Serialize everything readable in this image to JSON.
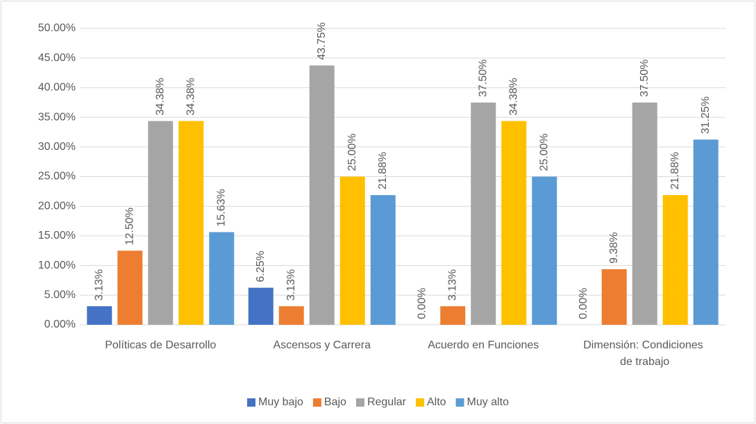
{
  "chart_data": {
    "type": "bar",
    "categories": [
      "Políticas de Desarrollo",
      "Ascensos y Carrera",
      "Acuerdo en Funciones",
      "Dimensión: Condiciones de trabajo"
    ],
    "series": [
      {
        "name": "Muy bajo",
        "color": "#4472c4",
        "values": [
          3.13,
          6.25,
          0,
          0
        ],
        "value_labels": [
          "3.13%",
          "6.25%",
          "0.00%",
          "0.00%"
        ]
      },
      {
        "name": "Bajo",
        "color": "#ed7d31",
        "values": [
          12.5,
          3.13,
          3.13,
          9.38
        ],
        "value_labels": [
          "12.50%",
          "3.13%",
          "3.13%",
          "9.38%"
        ]
      },
      {
        "name": "Regular",
        "color": "#a5a5a5",
        "values": [
          34.38,
          43.75,
          37.5,
          37.5
        ],
        "value_labels": [
          "34.38%",
          "43.75%",
          "37.50%",
          "37.50%"
        ]
      },
      {
        "name": "Alto",
        "color": "#ffc000",
        "values": [
          34.38,
          25,
          34.38,
          21.88
        ],
        "value_labels": [
          "34.38%",
          "25.00%",
          "34.38%",
          "21.88%"
        ]
      },
      {
        "name": "Muy alto",
        "color": "#5b9bd5",
        "values": [
          15.63,
          21.88,
          25,
          31.25
        ],
        "value_labels": [
          "15.63%",
          "21.88%",
          "25.00%",
          "31.25%"
        ]
      }
    ],
    "ylim": [
      0,
      50
    ],
    "yticks": [
      {
        "value": 0,
        "label": "0.00%"
      },
      {
        "value": 5,
        "label": "5.00%"
      },
      {
        "value": 10,
        "label": "10.00%"
      },
      {
        "value": 15,
        "label": "15.00%"
      },
      {
        "value": 20,
        "label": "20.00%"
      },
      {
        "value": 25,
        "label": "25.00%"
      },
      {
        "value": 30,
        "label": "30.00%"
      },
      {
        "value": 35,
        "label": "35.00%"
      },
      {
        "value": 40,
        "label": "40.00%"
      },
      {
        "value": 45,
        "label": "45.00%"
      },
      {
        "value": 50,
        "label": "50.00%"
      }
    ],
    "grid": true,
    "legend": "bottom"
  }
}
